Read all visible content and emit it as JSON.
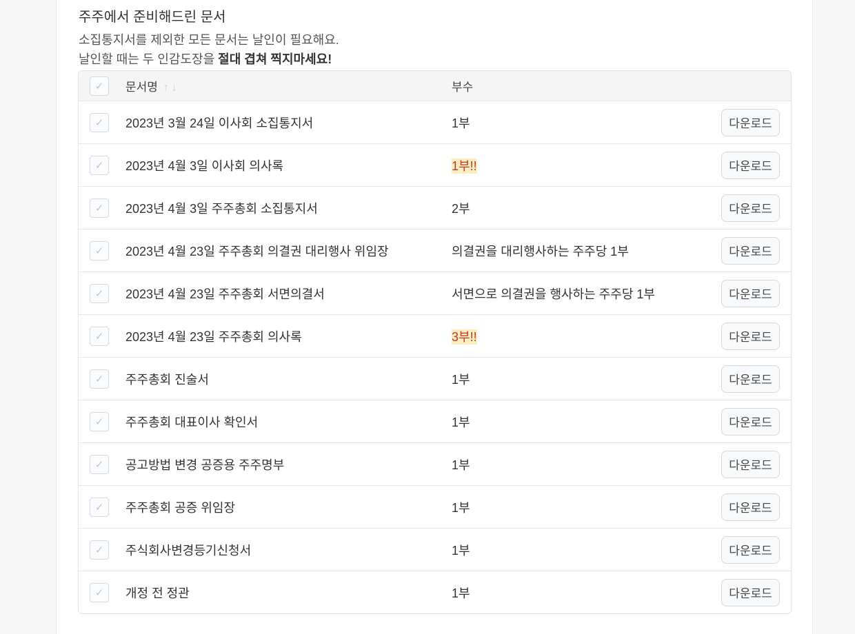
{
  "title": "주주에서 준비해드린 문서",
  "desc_line1": "소집통지서를 제외한 모든 문서는 날인이 필요해요.",
  "desc_line2_prefix": "날인할 때는 두 인감도장을 ",
  "desc_line2_bold": "절대 겹쳐 찍지마세요!",
  "table": {
    "col_name": "문서명",
    "col_count": "부수",
    "sort_icons": "↑↓",
    "check_glyph": "✓",
    "download_label": "다운로드",
    "warn_color": "#c0392b",
    "warn_bg": "#fbeec0",
    "rows": [
      {
        "name": "2023년 3월 24일 이사회 소집통지서",
        "count": "1부",
        "warn": false
      },
      {
        "name": "2023년 4월 3일 이사회 의사록",
        "count": "1부!!",
        "warn": true
      },
      {
        "name": "2023년 4월 3일 주주총회 소집통지서",
        "count": "2부",
        "warn": false
      },
      {
        "name": "2023년 4월 23일 주주총회 의결권 대리행사 위임장",
        "count": "의결권을 대리행사하는 주주당 1부",
        "warn": false
      },
      {
        "name": "2023년 4월 23일 주주총회 서면의결서",
        "count": "서면으로 의결권을 행사하는 주주당 1부",
        "warn": false
      },
      {
        "name": "2023년 4월 23일 주주총회 의사록",
        "count": "3부!!",
        "warn": true
      },
      {
        "name": "주주총회 진술서",
        "count": "1부",
        "warn": false
      },
      {
        "name": "주주총회 대표이사 확인서",
        "count": "1부",
        "warn": false
      },
      {
        "name": "공고방법 변경 공증용 주주명부",
        "count": "1부",
        "warn": false
      },
      {
        "name": "주주총회 공증 위임장",
        "count": "1부",
        "warn": false
      },
      {
        "name": "주식회사변경등기신청서",
        "count": "1부",
        "warn": false
      },
      {
        "name": "개정 전 정관",
        "count": "1부",
        "warn": false
      }
    ]
  }
}
